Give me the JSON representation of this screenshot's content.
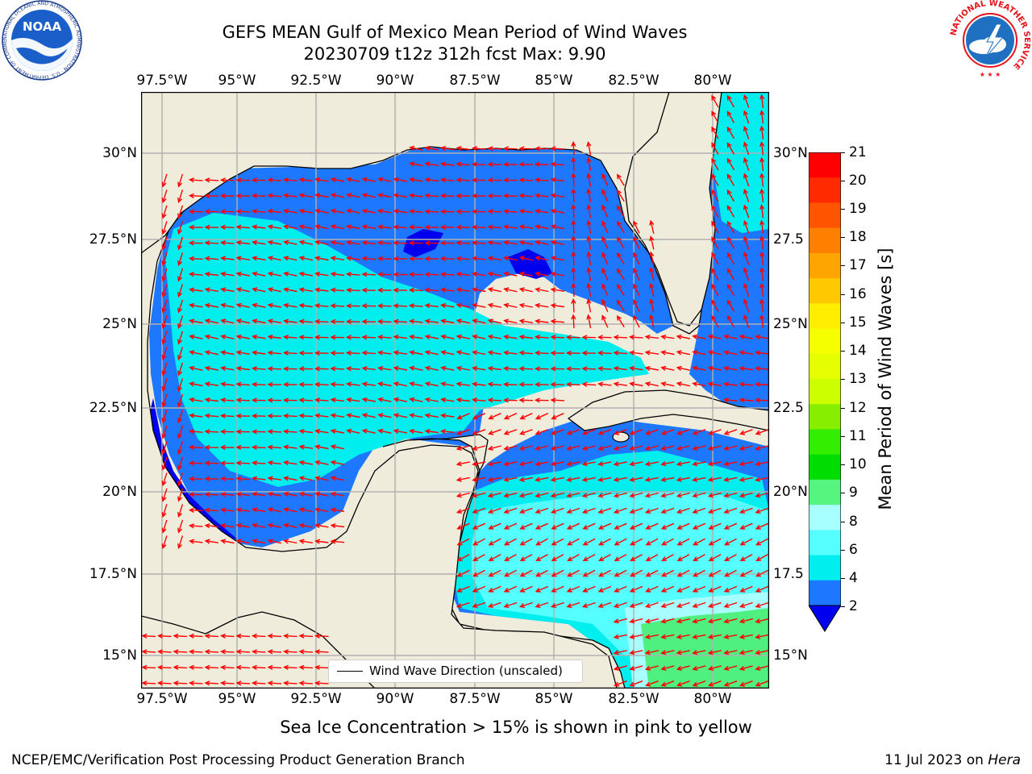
{
  "title": {
    "line1": "GEFS MEAN Gulf of Mexico Mean Period of Wind Waves",
    "line2": "20230709 t12z 312h fcst   Max: 9.90"
  },
  "map": {
    "lon_ticks": [
      "97.5°W",
      "95°W",
      "92.5°W",
      "90°W",
      "87.5°W",
      "85°W",
      "82.5°W",
      "80°W"
    ],
    "lat_ticks_left": [
      "30°N",
      "27.5°N",
      "25°N",
      "22.5°N",
      "20°N",
      "17.5°N",
      "15°N"
    ],
    "lat_ticks_right": [
      "30°N",
      "27.5",
      "25°N",
      "22.5",
      "20°N",
      "17.5",
      "15°N"
    ],
    "legend_label": "Wind Wave Direction (unscaled)",
    "colors": {
      "land": "#efecdc",
      "level_0_2": "#0000ee",
      "level_2_4": "#1e78ff",
      "level_4_6": "#00eeee",
      "level_6_8": "#55ffff",
      "level_8_9": "#a8ffff",
      "level_9_10": "#50f080",
      "arrow": "#ff0000"
    }
  },
  "colorbar": {
    "label": "Mean Period of Wind Waves [s]",
    "ticks": [
      "21",
      "20",
      "19",
      "18",
      "17",
      "16",
      "15",
      "14",
      "13",
      "12",
      "11",
      "10",
      "9",
      "8",
      "6",
      "4",
      "2"
    ],
    "bands": [
      "#ff0000",
      "#ff2a00",
      "#ff5500",
      "#ff7f00",
      "#ffa500",
      "#ffc800",
      "#ffee00",
      "#f5ff00",
      "#e6ff00",
      "#ccff00",
      "#88ee00",
      "#33ee00",
      "#00dd00",
      "#55f580",
      "#a8ffff",
      "#55ffff",
      "#00eeee",
      "#1e78ff"
    ],
    "extend_color": "#0000ee"
  },
  "note": "Sea Ice Concentration > 15% is shown in pink to yellow",
  "footer": {
    "left": "NCEP/EMC/Verification Post Processing Product Generation Branch",
    "right_date": "11 Jul 2023 on ",
    "right_machine": "Hera"
  },
  "logos": {
    "noaa": "NOAA",
    "nws": "NATIONAL WEATHER SERVICE",
    "noaa_ring": "NATIONAL OCEANIC AND ATMOSPHERIC ADMINISTRATION · U.S. DEPARTMENT OF COMMERCE"
  }
}
